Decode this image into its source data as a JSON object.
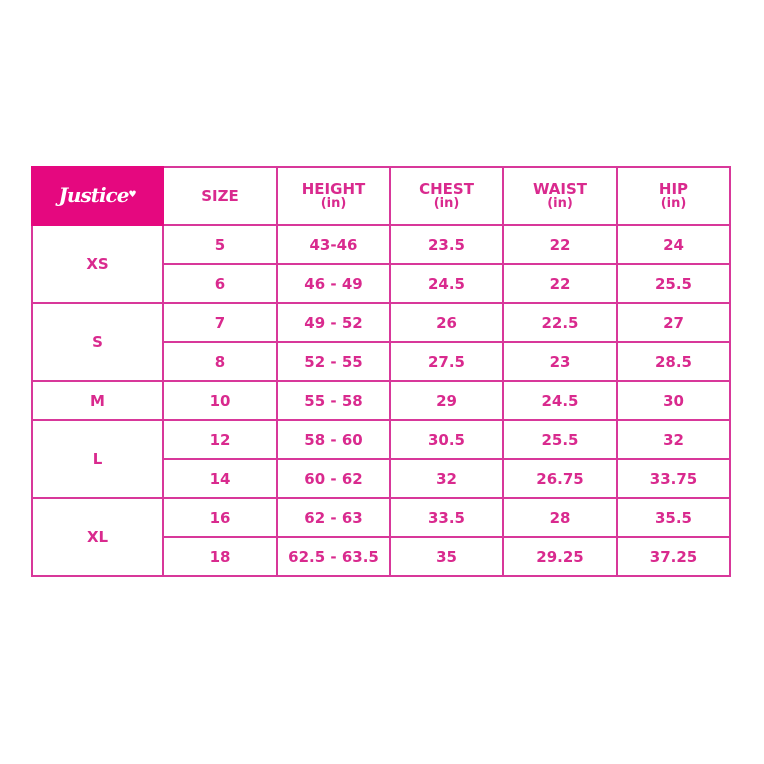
{
  "brand": {
    "logo_text": "Justice"
  },
  "headers": [
    {
      "label": "SIZE",
      "unit": ""
    },
    {
      "label": "HEIGHT",
      "unit": "(in)"
    },
    {
      "label": "CHEST",
      "unit": "(in)"
    },
    {
      "label": "WAIST",
      "unit": "(in)"
    },
    {
      "label": "HIP",
      "unit": "(in)"
    }
  ],
  "groups": [
    {
      "label": "XS",
      "rows": [
        [
          "5",
          "43-46",
          "23.5",
          "22",
          "24"
        ],
        [
          "6",
          "46 - 49",
          "24.5",
          "22",
          "25.5"
        ]
      ]
    },
    {
      "label": "S",
      "rows": [
        [
          "7",
          "49 - 52",
          "26",
          "22.5",
          "27"
        ],
        [
          "8",
          "52 - 55",
          "27.5",
          "23",
          "28.5"
        ]
      ]
    },
    {
      "label": "M",
      "rows": [
        [
          "10",
          "55 - 58",
          "29",
          "24.5",
          "30"
        ]
      ]
    },
    {
      "label": "L",
      "rows": [
        [
          "12",
          "58 - 60",
          "30.5",
          "25.5",
          "32"
        ],
        [
          "14",
          "60 - 62",
          "32",
          "26.75",
          "33.75"
        ]
      ]
    },
    {
      "label": "XL",
      "rows": [
        [
          "16",
          "62 - 63",
          "33.5",
          "28",
          "35.5"
        ],
        [
          "18",
          "62.5 - 63.5",
          "35",
          "29.25",
          "37.25"
        ]
      ]
    }
  ],
  "colors": {
    "brand_pink": "#e5087f",
    "text_pink": "#d92a8e",
    "border_pink": "#d8389a"
  }
}
